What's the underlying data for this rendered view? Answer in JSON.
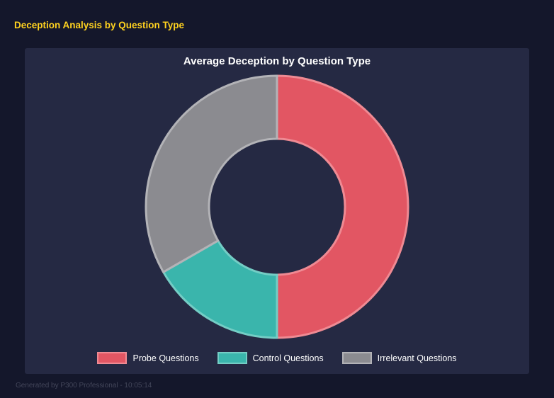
{
  "page": {
    "title": "Deception Analysis by Question Type",
    "footer": "Generated by P300 Professional - 10:05:14",
    "background_color": "#14172b",
    "panel_color": "#252943",
    "title_color": "#ffd21f"
  },
  "chart_data": {
    "type": "pie",
    "subtype": "donut",
    "title": "Average Deception by Question Type",
    "categories": [
      "Probe Questions",
      "Control Questions",
      "Irrelevant Questions"
    ],
    "values": [
      50.0,
      16.7,
      33.3
    ],
    "values_unit": "percent_of_total_estimated_from_slice_angles",
    "colors": [
      "#e25663",
      "#3ab5ac",
      "#8b8b90"
    ],
    "border_colors": [
      "#ef8a93",
      "#74cdc5",
      "#b3b3b7"
    ],
    "legend_position": "bottom",
    "start_angle_deg": 0,
    "direction": "clockwise",
    "outer_radius": 185,
    "inner_radius": 96
  }
}
